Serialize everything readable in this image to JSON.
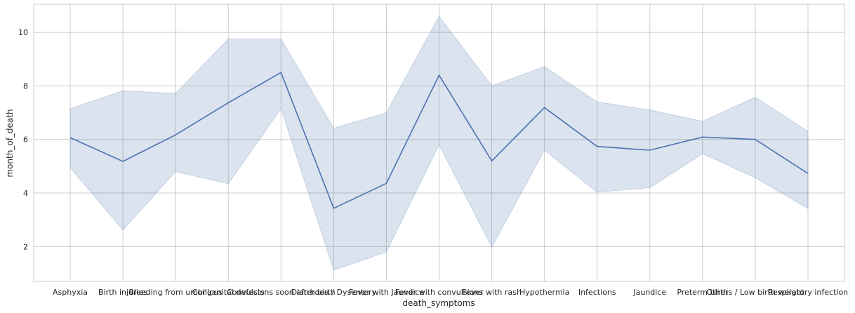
{
  "chart_data": {
    "type": "line",
    "xlabel": "death_symptoms",
    "ylabel": "month_of_death",
    "ylim": [
      0.7,
      11.05
    ],
    "yticks": [
      2,
      4,
      6,
      8,
      10
    ],
    "grid": true,
    "categories": [
      "Asphyxia",
      "Birth injuries",
      "Bleeding from umbilicus",
      "Congenital defects",
      "Convulsions soon after birth",
      "Diarrhoea / Dysentery",
      "Fever with Jaundice",
      "Fever with convulsions",
      "Fever with rash",
      "Hypothermia",
      "Infections",
      "Jaundice",
      "Preterm birth",
      "Others / Low birth weight",
      "Respiratory infection"
    ],
    "series": [
      {
        "values": [
          6.07,
          5.18,
          6.17,
          7.37,
          8.5,
          3.43,
          4.36,
          8.4,
          5.2,
          7.19,
          5.74,
          5.6,
          6.09,
          6.0,
          4.73
        ],
        "ci_low": [
          4.95,
          2.62,
          4.8,
          4.35,
          7.15,
          1.12,
          1.8,
          5.8,
          1.98,
          5.6,
          4.03,
          4.2,
          5.47,
          4.57,
          3.42
        ],
        "ci_high": [
          7.15,
          7.82,
          7.72,
          9.75,
          9.75,
          6.42,
          7.0,
          10.6,
          8.0,
          8.72,
          7.4,
          7.1,
          6.68,
          7.58,
          6.3
        ],
        "color": "#4c72b0"
      }
    ]
  }
}
